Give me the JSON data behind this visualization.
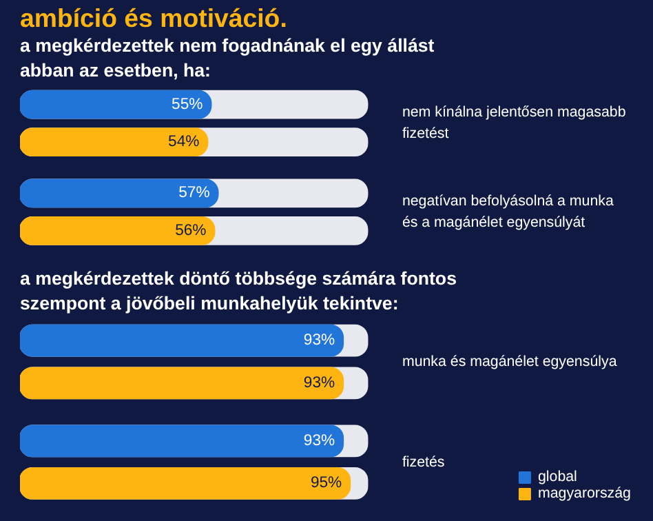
{
  "chart_data": [
    {
      "type": "bar",
      "orientation": "horizontal",
      "title": "ambíció és motiváció.",
      "subtitle": "a megkérdezettek nem fogadnának el egy állást abban az esetben, ha:",
      "categories": [
        "nem kínálna jelentősen magasabb fizetést",
        "negatívan befolyásolná a munka és a magánélet egyensúlyát"
      ],
      "xlim": [
        0,
        100
      ],
      "tick_labels": false,
      "grid": false,
      "legend": false,
      "series": [
        {
          "color": "#2175d9",
          "values": [
            55,
            57
          ],
          "value_labels": [
            "55%",
            "57%"
          ]
        },
        {
          "color": "#ffb511",
          "values": [
            54,
            56
          ],
          "value_labels": [
            "54%",
            "56%"
          ]
        }
      ]
    },
    {
      "type": "bar",
      "orientation": "horizontal",
      "title": "a megkérdezettek döntő többsége számára fontos szempont a jövőbeli munkahelyük tekintve:",
      "categories": [
        "munka és magánélet egyensúlya",
        "fizetés"
      ],
      "xlim": [
        0,
        100
      ],
      "tick_labels": false,
      "grid": false,
      "legend": "bottom right",
      "series": [
        {
          "name": "global",
          "color": "#2175d9",
          "values": [
            93,
            93
          ],
          "value_labels": [
            "93%",
            "93%"
          ]
        },
        {
          "name": "magyarország",
          "color": "#ffb511",
          "values": [
            93,
            95
          ],
          "value_labels": [
            "93%",
            "95%"
          ]
        }
      ]
    }
  ]
}
